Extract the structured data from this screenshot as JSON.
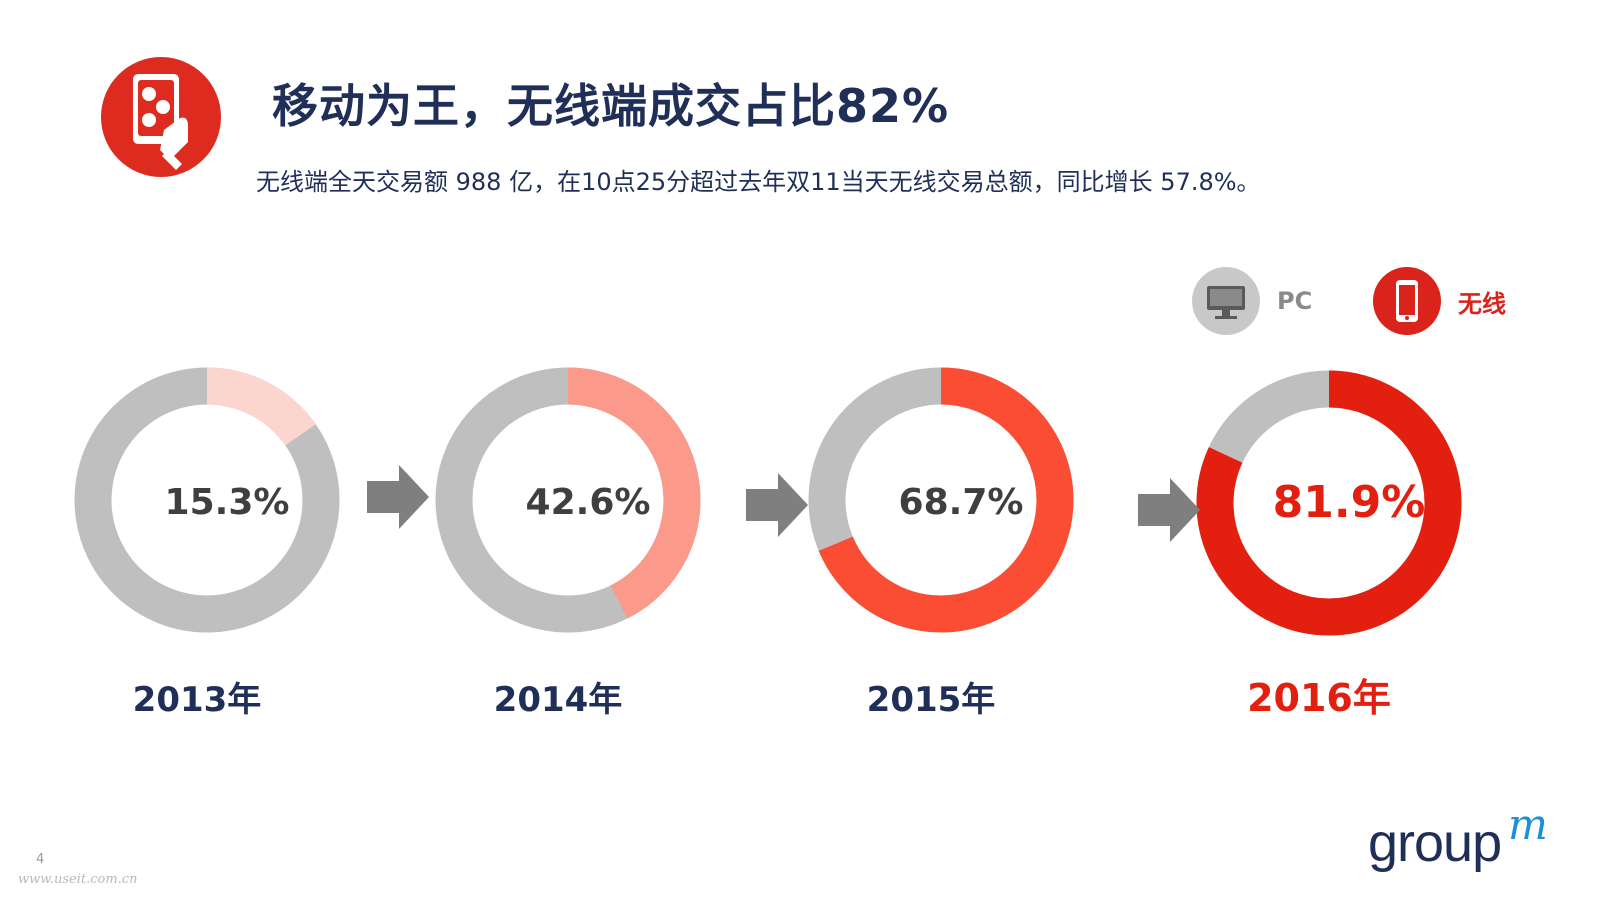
{
  "slide": {
    "title": "移动为王，无线端成交占比82%",
    "subtitle": "无线端全天交易额 988 亿，在10点25分超过去年双11当天无线交易总额，同比增长 57.8%。",
    "page_number": "4",
    "watermark": "www.useit.com.cn",
    "logo": {
      "text": "group",
      "accent": "m"
    },
    "icons": {
      "title_icon": "mobile-dice-hand-icon",
      "pc_icon": "monitor-icon",
      "mobile_icon": "smartphone-icon",
      "arrow_icon": "right-arrow-icon"
    }
  },
  "legend": [
    {
      "label": "PC",
      "color": "#bfbfbf",
      "icon": "monitor-icon"
    },
    {
      "label": "无线",
      "color": "#d9231b",
      "icon": "smartphone-icon"
    }
  ],
  "chart_data": {
    "type": "pie",
    "variant": "donut",
    "series_meaning": "wireless share of transactions",
    "series": [
      {
        "year": "2013年",
        "value": 15.3,
        "label": "15.3%",
        "color": "#fcd5cf",
        "label_color": "#3f3f3f",
        "year_color": "#1f2f57"
      },
      {
        "year": "2014年",
        "value": 42.6,
        "label": "42.6%",
        "color": "#fb998a",
        "label_color": "#3f3f3f",
        "year_color": "#1f2f57"
      },
      {
        "year": "2015年",
        "value": 68.7,
        "label": "68.7%",
        "color": "#fb4d33",
        "label_color": "#3f3f3f",
        "year_color": "#1f2f57"
      },
      {
        "year": "2016年",
        "value": 81.9,
        "label": "81.9%",
        "color": "#e3200f",
        "label_color": "#e3200f",
        "year_color": "#e3200f"
      }
    ],
    "remainder_color": "#bfbfbf",
    "arrow_color": "#7f7f7f"
  }
}
